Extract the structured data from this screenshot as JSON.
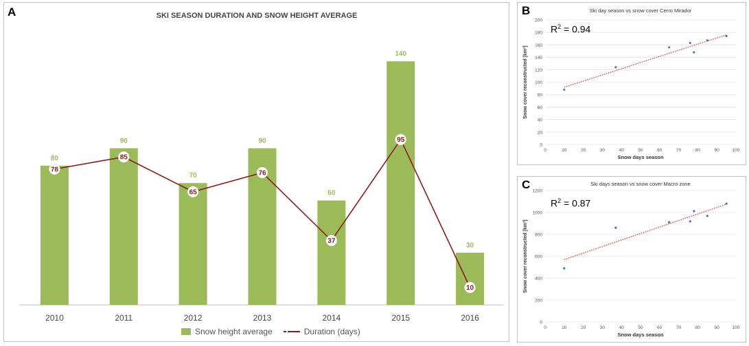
{
  "colors": {
    "bar": "#9bbb59",
    "line": "#8b1a1a",
    "bar_label": "#9bbb59",
    "scatter": "#4472c4",
    "trend": "#e0302a",
    "grid": "#d9d9d9"
  },
  "panels": {
    "a": {
      "letter": "A"
    },
    "b": {
      "letter": "B",
      "r2_prefix": "R",
      "r2_sup": "2",
      "r2_value": " = 0.94"
    },
    "c": {
      "letter": "C",
      "r2_prefix": "R",
      "r2_sup": "2",
      "r2_value": " = 0.87"
    }
  },
  "legend": {
    "bar_label": "Snow height average",
    "line_label": "Duration (days)"
  },
  "chart_data": [
    {
      "id": "a",
      "type": "bar",
      "title": "SKI SEASON DURATION AND SNOW HEIGHT AVERAGE",
      "categories": [
        "2010",
        "2011",
        "2012",
        "2013",
        "2014",
        "2015",
        "2016"
      ],
      "series": [
        {
          "name": "Snow height average",
          "type": "bar",
          "values": [
            80,
            90,
            70,
            90,
            60,
            140,
            30
          ]
        },
        {
          "name": "Duration (days)",
          "type": "line",
          "values": [
            78,
            85,
            65,
            76,
            37,
            95,
            10
          ]
        }
      ],
      "ylim": [
        0,
        150
      ],
      "xlabel": "",
      "ylabel": ""
    },
    {
      "id": "b",
      "type": "scatter",
      "title": "Ski day season vs snow cover Cerro Mirador",
      "xlabel": "Snow days season",
      "ylabel": "Snow cover reconstructed [km²]",
      "xlim": [
        0,
        100
      ],
      "ylim": [
        0,
        200
      ],
      "xticks": [
        0,
        10,
        20,
        30,
        40,
        50,
        60,
        70,
        80,
        90,
        100
      ],
      "yticks": [
        0,
        20,
        40,
        60,
        80,
        100,
        120,
        140,
        160,
        180,
        200
      ],
      "points": [
        [
          10,
          88
        ],
        [
          37,
          124
        ],
        [
          65,
          156
        ],
        [
          76,
          163
        ],
        [
          78,
          148
        ],
        [
          85,
          167
        ],
        [
          95,
          174
        ]
      ],
      "trendline": {
        "x": [
          10,
          95
        ],
        "y": [
          92,
          176
        ]
      },
      "r2": 0.94
    },
    {
      "id": "c",
      "type": "scatter",
      "title": "Ski days season vs snow cover Macro zone",
      "xlabel": "Snow days season",
      "ylabel": "Snow cover reconstructed [km²]",
      "xlim": [
        0,
        100
      ],
      "ylim": [
        0,
        1200
      ],
      "xticks": [
        0,
        10,
        20,
        30,
        40,
        50,
        60,
        70,
        80,
        90,
        100
      ],
      "yticks": [
        0,
        200,
        400,
        600,
        800,
        1000,
        1200
      ],
      "points": [
        [
          10,
          490
        ],
        [
          37,
          860
        ],
        [
          65,
          910
        ],
        [
          76,
          918
        ],
        [
          78,
          1012
        ],
        [
          85,
          968
        ],
        [
          95,
          1080
        ]
      ],
      "trendline": {
        "x": [
          10,
          95
        ],
        "y": [
          570,
          1075
        ]
      },
      "r2": 0.87
    }
  ]
}
